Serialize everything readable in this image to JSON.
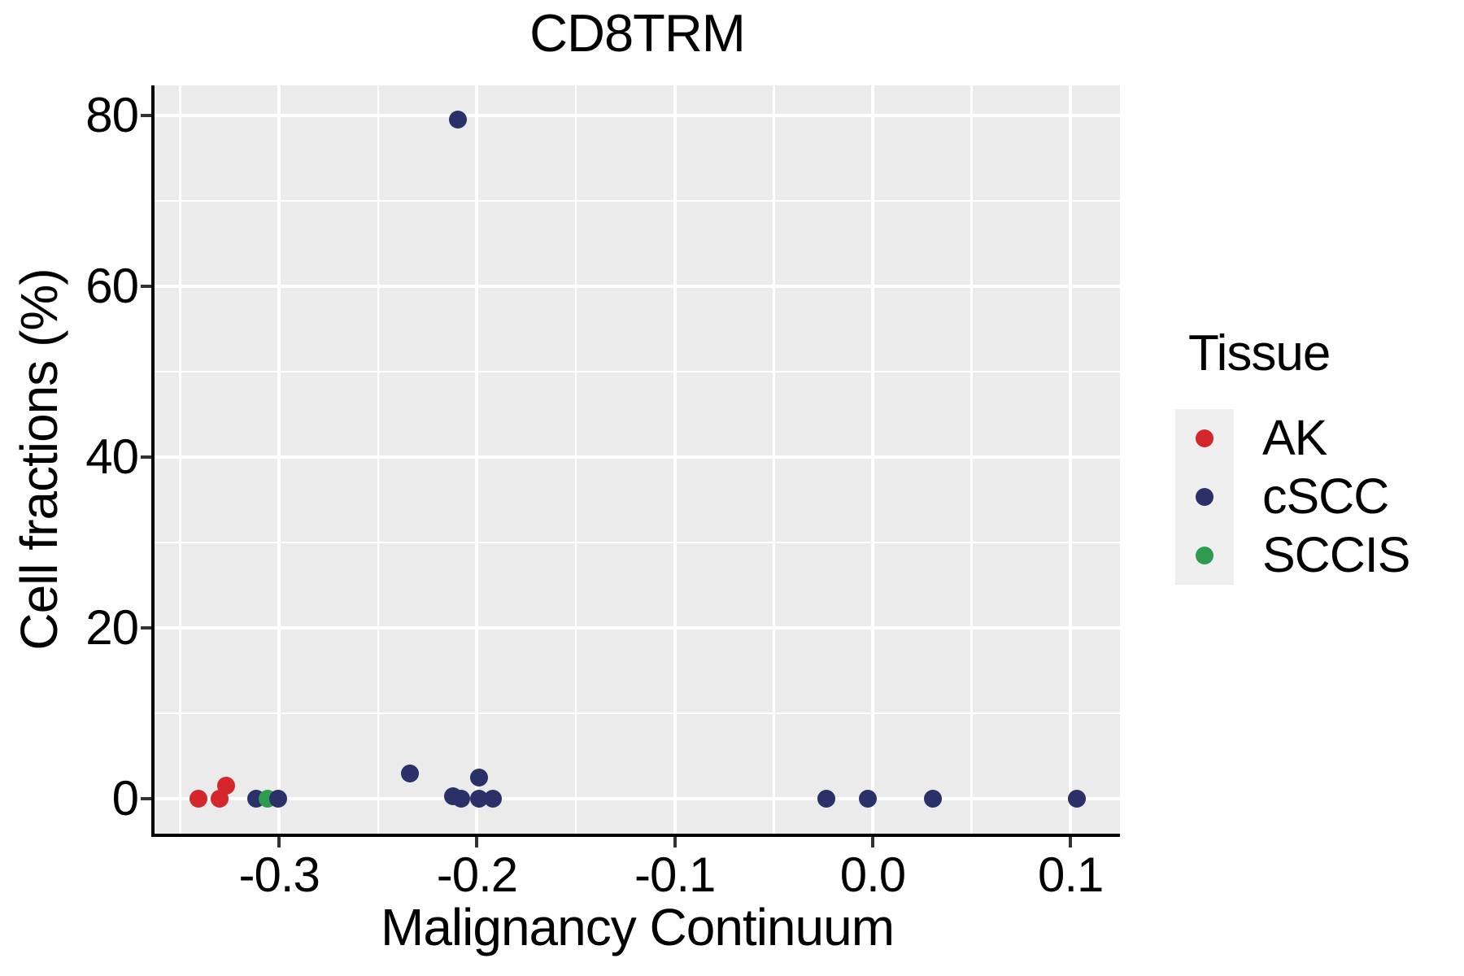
{
  "title": "CD8TRM",
  "axes": {
    "x_label": "Malignancy Continuum",
    "y_label": "Cell fractions (%)"
  },
  "legend": {
    "title": "Tissue",
    "items": [
      {
        "label": "AK",
        "color": "#D3272B"
      },
      {
        "label": "cSCC",
        "color": "#2A3168"
      },
      {
        "label": "SCCIS",
        "color": "#2E9B4F"
      }
    ]
  },
  "colors": {
    "panel_background": "#EBEBEB",
    "grid": "#FFFFFF",
    "axis_line": "#000000",
    "tick_mark": "#333333",
    "legend_key_background": "#EFEFEF"
  },
  "chart_data": {
    "type": "scatter",
    "title": "CD8TRM",
    "xlabel": "Malignancy Continuum",
    "ylabel": "Cell fractions (%)",
    "xlim": [
      -0.363,
      0.125
    ],
    "ylim": [
      -4.1,
      83.5
    ],
    "x_ticks": {
      "values": [
        -0.3,
        -0.2,
        -0.1,
        0.0,
        0.1
      ],
      "labels": [
        "-0.3",
        "-0.2",
        "-0.1",
        "0.0",
        "0.1"
      ]
    },
    "x_minor_ticks": [
      -0.35,
      -0.25,
      -0.15,
      -0.05,
      0.05
    ],
    "y_ticks": {
      "values": [
        0,
        20,
        40,
        60,
        80
      ],
      "labels": [
        "0",
        "20",
        "40",
        "60",
        "80"
      ]
    },
    "y_minor_ticks": [
      10,
      30,
      50,
      70
    ],
    "grid": "white major+minor gridlines on grey panel",
    "legend_position": "right",
    "point_style": "filled circle ~22px",
    "series": [
      {
        "name": "AK",
        "color": "#D3272B",
        "points": [
          [
            -0.341,
            0
          ],
          [
            -0.33,
            0
          ],
          [
            -0.327,
            1.5
          ]
        ]
      },
      {
        "name": "cSCC",
        "color": "#2A3168",
        "points": [
          [
            -0.3115,
            0
          ],
          [
            -0.234,
            2.9
          ],
          [
            -0.212,
            0.3
          ],
          [
            -0.208,
            0
          ],
          [
            -0.199,
            0
          ],
          [
            -0.192,
            0
          ],
          [
            -0.199,
            2.5
          ],
          [
            -0.2095,
            79.5
          ],
          [
            -0.0236,
            0
          ],
          [
            -0.0023,
            0
          ],
          [
            0.0303,
            0
          ],
          [
            0.1032,
            0
          ],
          [
            -0.3005,
            0,
            4
          ]
        ]
      },
      {
        "name": "SCCIS",
        "color": "#2E9B4F",
        "points": [
          [
            -0.306,
            0
          ]
        ]
      }
    ]
  }
}
